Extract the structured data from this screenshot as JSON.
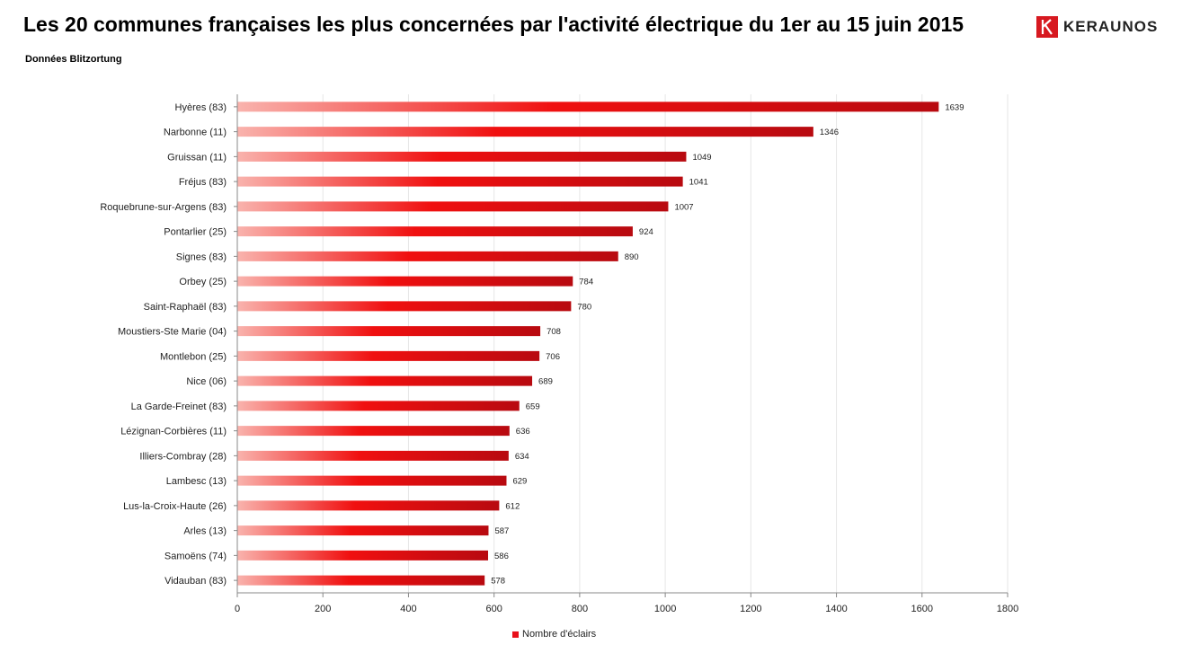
{
  "header": {
    "title": "Les 20 communes françaises les plus concernées par l'activité électrique du 1er au 15 juin 2015",
    "subtitle": "Données Blitzortung",
    "brand": "KERAUNOS"
  },
  "chart_data": {
    "type": "bar",
    "orientation": "horizontal",
    "categories": [
      "Hyères (83)",
      "Narbonne (11)",
      "Gruissan (11)",
      "Fréjus (83)",
      "Roquebrune-sur-Argens (83)",
      "Pontarlier (25)",
      "Signes (83)",
      "Orbey (25)",
      "Saint-Raphaël (83)",
      "Moustiers-Ste Marie (04)",
      "Montlebon (25)",
      "Nice (06)",
      "La Garde-Freinet (83)",
      "Lézignan-Corbières (11)",
      "Illiers-Combray (28)",
      "Lambesc (13)",
      "Lus-la-Croix-Haute (26)",
      "Arles (13)",
      "Samoëns (74)",
      "Vidauban (83)"
    ],
    "series": [
      {
        "name": "Nombre d'éclairs",
        "values": [
          1639,
          1346,
          1049,
          1041,
          1007,
          924,
          890,
          784,
          780,
          708,
          706,
          689,
          659,
          636,
          634,
          629,
          612,
          587,
          586,
          578
        ]
      }
    ],
    "xlim": [
      0,
      1800
    ],
    "xticks": [
      0,
      200,
      400,
      600,
      800,
      1000,
      1200,
      1400,
      1600,
      1800
    ],
    "grid": "vertical",
    "legend_position": "bottom",
    "colors": {
      "bar_light": "#f9b3ad",
      "bar_mid": "#f01010",
      "bar_dark": "#b80a10",
      "grid": "#e6e6e6",
      "axis": "#888888"
    }
  }
}
